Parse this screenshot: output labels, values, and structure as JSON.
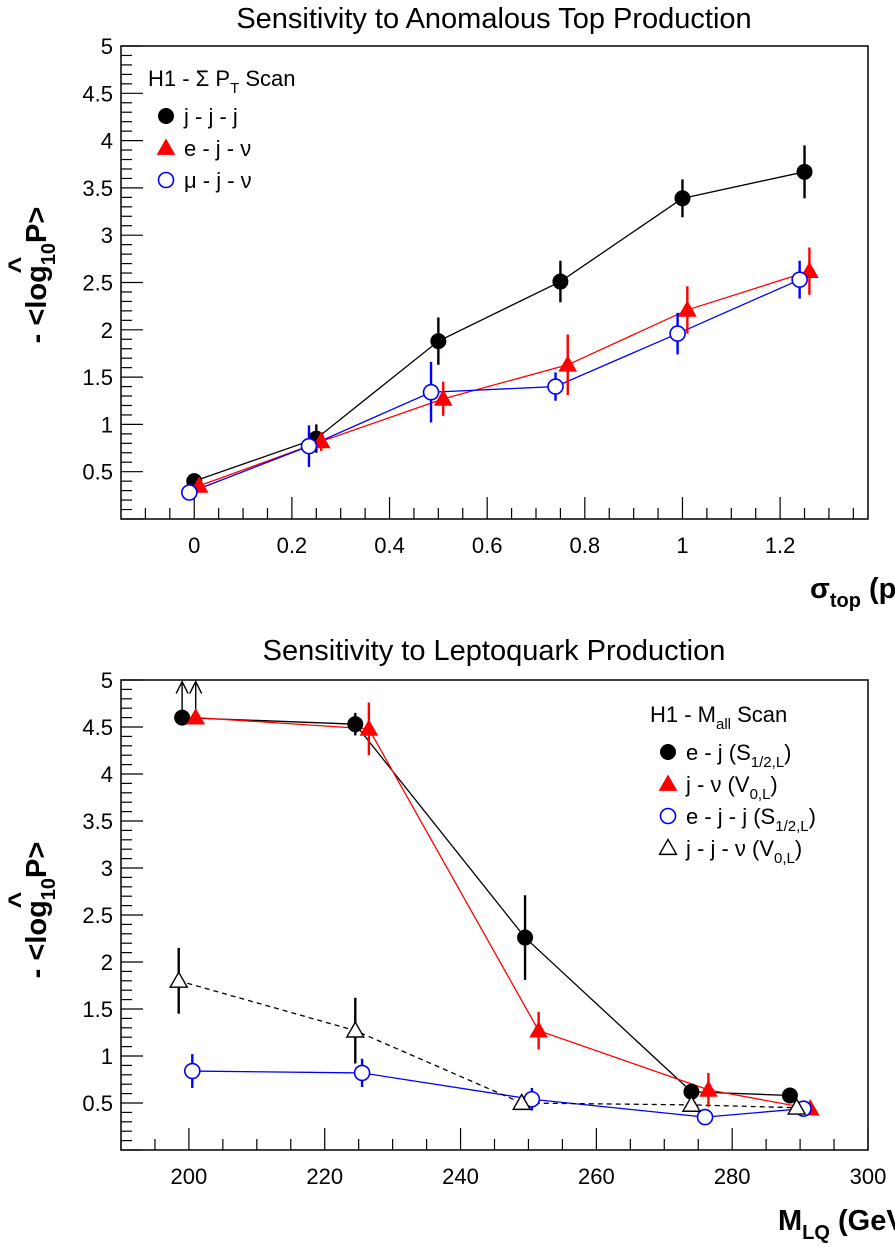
{
  "chart_data": [
    {
      "type": "scatter",
      "title": "Sensitivity to Anomalous Top Production",
      "xlabel": "σ",
      "xlabel_sub": "top",
      "xlabel_unit": " (pb)",
      "ylabel": "- <log",
      "ylabel_sub": "10",
      "ylabel_var": "P",
      "ylabel_end": ">",
      "xlim": [
        -0.15,
        1.38
      ],
      "ylim": [
        0.0,
        5.0
      ],
      "xticks": [
        "0",
        "0.2",
        "0.4",
        "0.6",
        "0.8",
        "1",
        "1.2"
      ],
      "xtick_values": [
        0,
        0.2,
        0.4,
        0.6,
        0.8,
        1.0,
        1.2
      ],
      "yticks": [
        "0.5",
        "1",
        "1.5",
        "2",
        "2.5",
        "3",
        "3.5",
        "4",
        "4.5",
        "5"
      ],
      "ytick_values": [
        0.5,
        1,
        1.5,
        2,
        2.5,
        3,
        3.5,
        4,
        4.5,
        5
      ],
      "legend_title": "H1 - Σ P",
      "legend_title_sub": "T",
      "legend_title_end": " Scan",
      "legend_position": "top-left",
      "series": [
        {
          "name": "j - j - j",
          "marker": "circle-filled",
          "color": "#000000",
          "x": [
            0.0,
            0.2,
            0.5,
            0.75,
            1.0,
            1.25
          ],
          "y": [
            0.4,
            0.85,
            1.88,
            2.51,
            3.39,
            3.67
          ],
          "err": [
            0.05,
            0.15,
            0.25,
            0.22,
            0.2,
            0.28
          ],
          "point_dx": [
            0.0,
            0.05,
            0.0,
            0.0,
            0.0,
            0.0
          ]
        },
        {
          "name": "e - j - ν",
          "marker": "triangle-filled",
          "color": "#ff0000",
          "x": [
            0.0,
            0.25,
            0.5,
            0.75,
            1.0,
            1.25
          ],
          "y": [
            0.35,
            0.82,
            1.27,
            1.63,
            2.21,
            2.62
          ],
          "err": [
            0.05,
            0.1,
            0.18,
            0.32,
            0.25,
            0.25
          ],
          "point_dx": [
            0.01,
            0.01,
            0.01,
            0.015,
            0.01,
            0.01
          ]
        },
        {
          "name": "μ - j - ν",
          "marker": "circle-open",
          "color": "#0000ff",
          "x": [
            0.0,
            0.25,
            0.5,
            0.75,
            1.0,
            1.25
          ],
          "y": [
            0.28,
            0.77,
            1.34,
            1.4,
            1.96,
            2.53
          ],
          "err": [
            0.05,
            0.22,
            0.32,
            0.15,
            0.22,
            0.2
          ],
          "point_dx": [
            -0.01,
            -0.015,
            -0.015,
            -0.01,
            -0.01,
            -0.01
          ]
        }
      ]
    },
    {
      "type": "scatter",
      "title": "Sensitivity to Leptoquark Production",
      "xlabel": "M",
      "xlabel_sub": "LQ",
      "xlabel_unit": " (GeV)",
      "ylabel": "- <log",
      "ylabel_sub": "10",
      "ylabel_var": "P",
      "ylabel_end": ">",
      "xlim": [
        190,
        300
      ],
      "ylim": [
        0.0,
        5.0
      ],
      "xticks": [
        "200",
        "220",
        "240",
        "260",
        "280",
        "300"
      ],
      "xtick_values": [
        200,
        220,
        240,
        260,
        280,
        300
      ],
      "yticks": [
        "0.5",
        "1",
        "1.5",
        "2",
        "2.5",
        "3",
        "3.5",
        "4",
        "4.5",
        "5"
      ],
      "ytick_values": [
        0.5,
        1,
        1.5,
        2,
        2.5,
        3,
        3.5,
        4,
        4.5,
        5
      ],
      "legend_title": "H1 - M",
      "legend_title_sub": "all",
      "legend_title_end": " Scan",
      "legend_position": "top-right",
      "series": [
        {
          "name": "e - j  (S",
          "name_sub": "1/2,L",
          "name_end": ")",
          "marker": "circle-filled",
          "color": "#000000",
          "line_style": "solid",
          "x": [
            200,
            225,
            250,
            275,
            290
          ],
          "y": [
            4.6,
            4.53,
            2.26,
            0.62,
            0.58
          ],
          "err": [
            0,
            0.12,
            0.45,
            0.08,
            0.06
          ],
          "lower_limit": [
            true,
            false,
            false,
            false,
            false
          ],
          "point_dx": [
            -1.0,
            -0.5,
            -0.5,
            -1.0,
            -1.5
          ]
        },
        {
          "name": "j - ν  (V",
          "name_sub": "0,L",
          "name_end": ")",
          "marker": "triangle-filled",
          "color": "#ff0000",
          "line_style": "solid",
          "x": [
            200,
            225,
            250,
            275,
            290
          ],
          "y": [
            4.6,
            4.48,
            1.27,
            0.64,
            0.44
          ],
          "err": [
            0,
            0.28,
            0.2,
            0.18,
            0.05
          ],
          "lower_limit": [
            true,
            false,
            false,
            false,
            false
          ],
          "point_dx": [
            1.0,
            1.5,
            1.5,
            1.5,
            1.5
          ]
        },
        {
          "name": "e - j - j  (S",
          "name_sub": "1/2,L",
          "name_end": ")",
          "marker": "circle-open",
          "color": "#0000ff",
          "line_style": "solid",
          "x": [
            200,
            225,
            250,
            275,
            290
          ],
          "y": [
            0.84,
            0.82,
            0.54,
            0.35,
            0.44
          ],
          "err": [
            0.18,
            0.15,
            0.12,
            0.04,
            0.05
          ],
          "lower_limit": [
            false,
            false,
            false,
            false,
            false
          ],
          "point_dx": [
            0.5,
            0.5,
            0.5,
            1.0,
            0.5
          ]
        },
        {
          "name": "j - j - ν  (V",
          "name_sub": "0,L",
          "name_end": ")",
          "marker": "triangle-open",
          "color": "#000000",
          "line_style": "dashed",
          "x": [
            200,
            225,
            250,
            275,
            290
          ],
          "y": [
            1.8,
            1.27,
            0.5,
            0.48,
            0.45
          ],
          "err": [
            0.35,
            0.35,
            0.06,
            0.06,
            0.04
          ],
          "lower_limit": [
            false,
            false,
            false,
            false,
            false
          ],
          "point_dx": [
            -1.5,
            -0.5,
            -1.0,
            -1.0,
            -0.5
          ]
        }
      ]
    }
  ]
}
